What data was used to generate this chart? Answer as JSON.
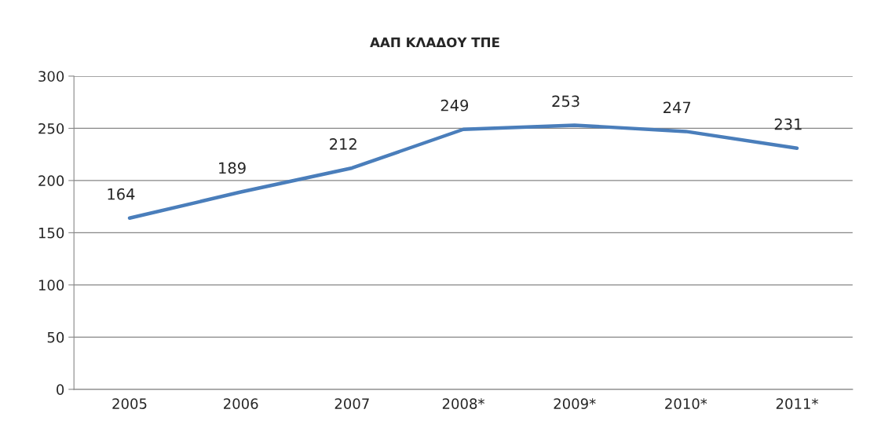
{
  "chart_data": {
    "type": "line",
    "title": "ΑΑΠ ΚΛΑΔΟΥ ΤΠΕ",
    "categories": [
      "2005",
      "2006",
      "2007",
      "2008*",
      "2009*",
      "2010*",
      "2011*"
    ],
    "series": [
      {
        "color": "#4a7ebb",
        "values": [
          164,
          189,
          212,
          249,
          253,
          247,
          231
        ]
      }
    ],
    "ylim": [
      0,
      300
    ],
    "yticks": [
      0,
      50,
      100,
      150,
      200,
      250,
      300
    ],
    "grid": "y",
    "data_labels": true,
    "marker": "none",
    "line_style": "solid",
    "legend": false
  }
}
